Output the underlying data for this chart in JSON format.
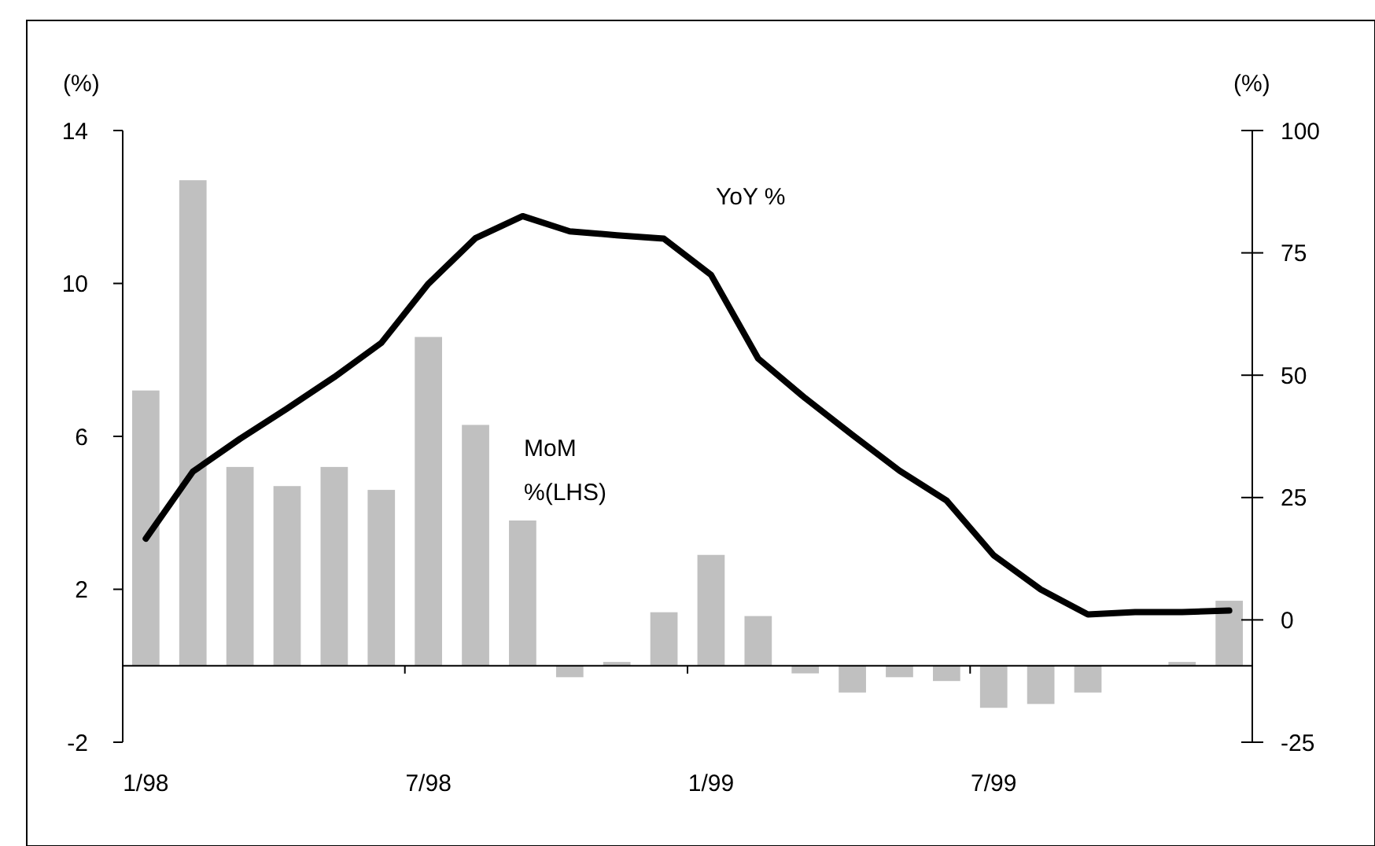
{
  "chart_data": {
    "type": "bar",
    "ylabel": "(%)",
    "y2label": "(%)",
    "categories": [
      "1/98",
      null,
      null,
      null,
      null,
      null,
      "7/98",
      null,
      null,
      null,
      null,
      null,
      "1/99",
      null,
      null,
      null,
      null,
      null,
      "7/99",
      null,
      null,
      null,
      null,
      null
    ],
    "series": [
      {
        "name": "MoM %(LHS)",
        "color": "#c0c0c0",
        "values": [
          7.2,
          12.7,
          5.2,
          4.7,
          5.2,
          4.6,
          8.6,
          6.3,
          3.8,
          -0.3,
          0.1,
          1.4,
          2.9,
          1.3,
          -0.2,
          -0.7,
          -0.3,
          -0.4,
          -1.1,
          -1.0,
          -0.7,
          0.0,
          0.1,
          1.7
        ]
      },
      {
        "name": "YoY %",
        "type": "line",
        "axis": "y2",
        "color": "#000000",
        "values": [
          16.6,
          30.3,
          37.0,
          43.2,
          49.6,
          56.6,
          68.7,
          78.0,
          82.5,
          79.4,
          78.6,
          77.9,
          70.5,
          53.4,
          45.3,
          37.8,
          30.5,
          24.4,
          13.2,
          6.2,
          1.1,
          1.6,
          1.6,
          1.9
        ]
      }
    ],
    "ylim": [
      -2,
      14
    ],
    "yticks": [
      14,
      10,
      6,
      2,
      -2
    ],
    "y2lim": [
      -25,
      100
    ],
    "y2ticks": [
      100,
      75,
      50,
      25,
      0,
      -25
    ],
    "grid": false,
    "marker": "none",
    "line_style": "solid"
  }
}
